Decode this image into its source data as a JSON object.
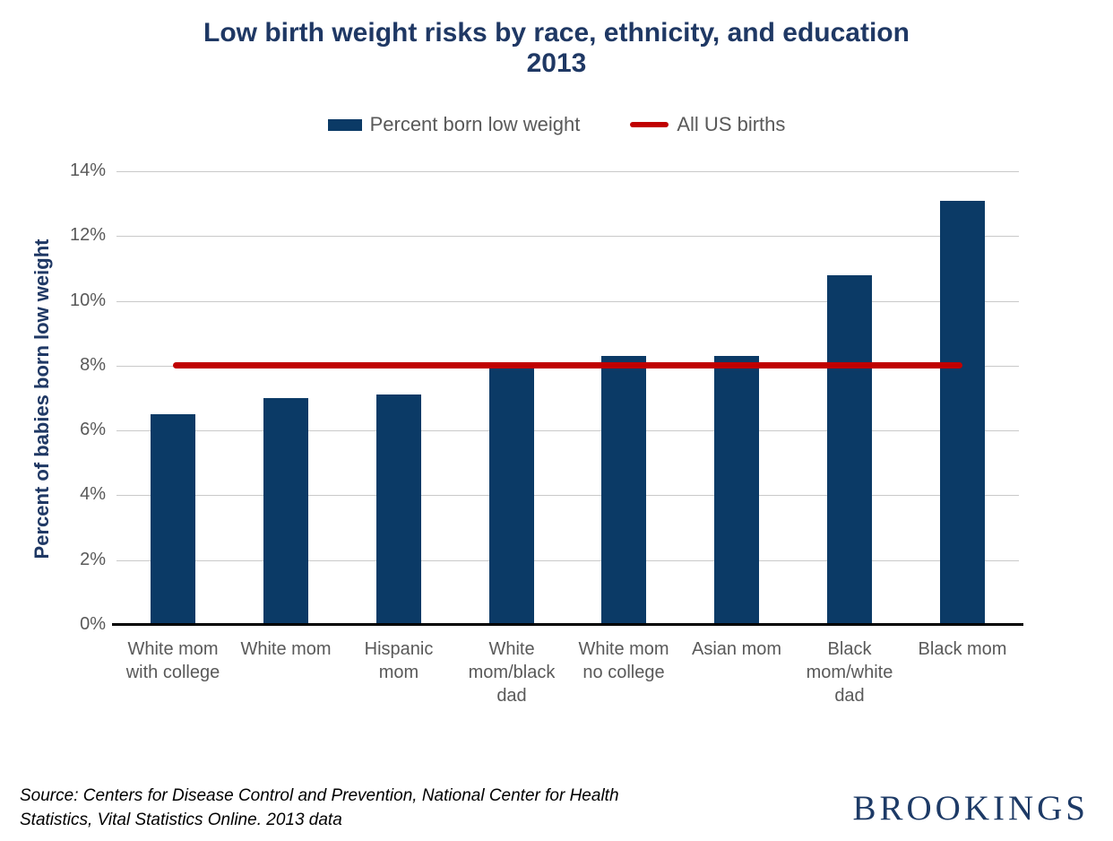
{
  "chart_data": {
    "type": "bar",
    "title": "Low birth weight risks by race, ethnicity, and education 2013",
    "ylabel": "Percent of babies born low weight",
    "xlabel": "",
    "categories": [
      "White mom\nwith college",
      "White mom",
      "Hispanic\nmom",
      "White\nmom/black\ndad",
      "White mom\nno college",
      "Asian mom",
      "Black\nmom/white\ndad",
      "Black mom"
    ],
    "series": [
      {
        "name": "Percent born low weight",
        "type": "bar",
        "values": [
          6.5,
          7.0,
          7.1,
          7.9,
          8.3,
          8.3,
          10.8,
          13.1
        ]
      }
    ],
    "reference_line": {
      "label": "All US births",
      "value": 8.0
    },
    "ylim": [
      0,
      14
    ],
    "yticks": [
      0,
      2,
      4,
      6,
      8,
      10,
      12,
      14
    ],
    "ytick_suffix": "%",
    "grid": true,
    "legend_position": "top",
    "bar_color": "#0b3a66",
    "line_color": "#c00000"
  },
  "legend": [
    {
      "label": "Percent born low weight",
      "swatch": "bar",
      "color": "#0b3a66"
    },
    {
      "label": "All US births",
      "swatch": "line",
      "color": "#c00000"
    }
  ],
  "source": {
    "text": "Source: Centers for Disease Control and Prevention, National Center for Health\nStatistics, Vital Statistics Online. 2013 data"
  },
  "branding": {
    "logo_text": "BROOKINGS"
  },
  "colors": {
    "title": "#1f3864",
    "axis_text": "#595959",
    "gridline": "#c9c9c9",
    "bar": "#0b3a66",
    "reference_line": "#c00000",
    "logo": "#1d3a66"
  }
}
